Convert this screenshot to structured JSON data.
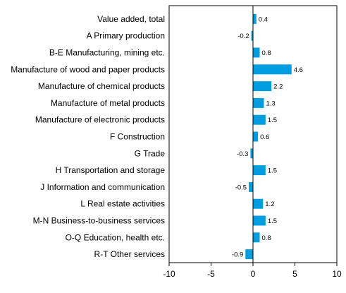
{
  "chart_data": {
    "type": "bar",
    "orientation": "horizontal",
    "categories": [
      "Value added, total",
      "A Primary production",
      "B-E Manufacturing, mining etc.",
      "Manufacture of wood and paper products",
      "Manufacture of chemical products",
      "Manufacture of metal products",
      "Manufacture of electronic products",
      "F Construction",
      "G Trade",
      "H Transportation and storage",
      "J Information and communication",
      "L Real estate activities",
      "M-N Business-to-business services",
      "O-Q Education, health etc.",
      "R-T Other services"
    ],
    "values": [
      0.4,
      -0.2,
      0.8,
      4.6,
      2.2,
      1.3,
      1.5,
      0.6,
      -0.3,
      1.5,
      -0.5,
      1.2,
      1.5,
      0.8,
      -0.9
    ],
    "value_labels": [
      "0.4",
      "-0.2",
      "0.8",
      "4.6",
      "2.2",
      "1.3",
      "1.5",
      "0.6",
      "-0.3",
      "1.5",
      "-0.5",
      "1.2",
      "1.5",
      "0.8",
      "-0.9"
    ],
    "xlim": [
      -10,
      10
    ],
    "xticks": [
      -10,
      -5,
      0,
      5,
      10
    ],
    "xtick_labels": [
      "-10",
      "-5",
      "0",
      "5",
      "10"
    ],
    "grid": false,
    "legend": "none",
    "bar_color": "#009ee0"
  }
}
